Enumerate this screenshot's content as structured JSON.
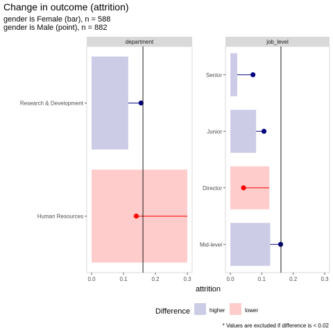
{
  "chart_data": {
    "type": "bar",
    "title": "Change in outcome (attrition)",
    "subtitle": [
      "gender is Female (bar), n = 588",
      "gender is Male (point), n = 882"
    ],
    "xlabel": "attrition",
    "xlim": [
      0,
      0.3
    ],
    "x_ticks": [
      "0.0",
      "0.1",
      "0.2",
      "0.3"
    ],
    "reference_line": 0.161,
    "grid": false,
    "facets": [
      {
        "label": "department",
        "categories": [
          "Research & Development",
          "Human Resources"
        ],
        "bar_values": [
          0.115,
          0.3
        ],
        "point_values": [
          0.155,
          0.14
        ],
        "difference": [
          "higher",
          "lower"
        ]
      },
      {
        "label": "job_level",
        "categories": [
          "Senior",
          "Junior",
          "Director",
          "Mid-level"
        ],
        "bar_values": [
          0.022,
          0.082,
          0.124,
          0.127
        ],
        "point_values": [
          0.072,
          0.107,
          0.042,
          0.16
        ],
        "difference": [
          "higher",
          "higher",
          "lower",
          "higher"
        ]
      }
    ],
    "legend": {
      "title": "Difference",
      "position": "bottom",
      "entries": [
        {
          "label": "higher",
          "bar_color": "#CCCCE6",
          "point_color": "#000080"
        },
        {
          "label": "lower",
          "bar_color": "#FFCCCC",
          "point_color": "#FF0000"
        }
      ]
    },
    "footnote": "* Values are excluded if difference is < 0.02"
  }
}
